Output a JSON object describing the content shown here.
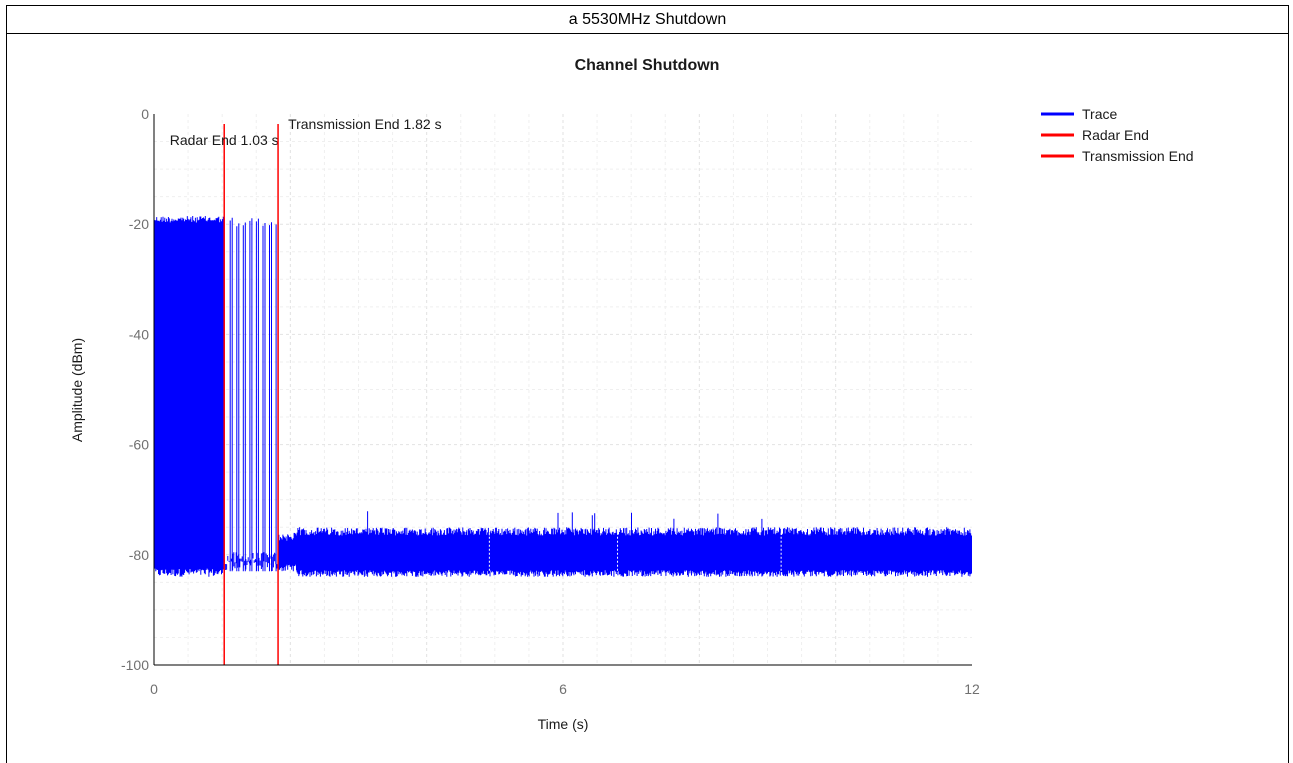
{
  "caption": "a 5530MHz Shutdown",
  "chart_data": {
    "type": "line",
    "title": "Channel Shutdown",
    "xlabel": "Time (s)",
    "ylabel": "Amplitude (dBm)",
    "xlim": [
      0,
      12
    ],
    "ylim": [
      -100,
      0
    ],
    "x_ticks": [
      "0",
      "6",
      "12"
    ],
    "y_ticks": [
      "0",
      "-20",
      "-40",
      "-60",
      "-80",
      "-100"
    ],
    "grid": true,
    "legend_position": "top-right",
    "series": [
      {
        "name": "Trace",
        "color": "#0000ff",
        "segments": [
          {
            "x_start": 0.0,
            "x_end": 1.03,
            "y_low": -84,
            "y_high": -18.5,
            "style": "dense-pulses"
          },
          {
            "x_start": 1.03,
            "x_end": 1.82,
            "y_low": -83,
            "y_high": -19,
            "style": "sparse-pulses"
          },
          {
            "x_start": 1.82,
            "x_end": 2.1,
            "y_low": -83,
            "y_high": -76,
            "style": "noise"
          },
          {
            "x_start": 2.1,
            "x_end": 12.0,
            "y_low": -84,
            "y_high": -75,
            "style": "noise"
          }
        ]
      }
    ],
    "markers": [
      {
        "name": "Radar End",
        "x": 1.03,
        "color": "#ff0000",
        "label": "Radar End 1.03 s"
      },
      {
        "name": "Transmission End",
        "x": 1.82,
        "color": "#ff0000",
        "label": "Transmission End 1.82 s"
      }
    ]
  }
}
